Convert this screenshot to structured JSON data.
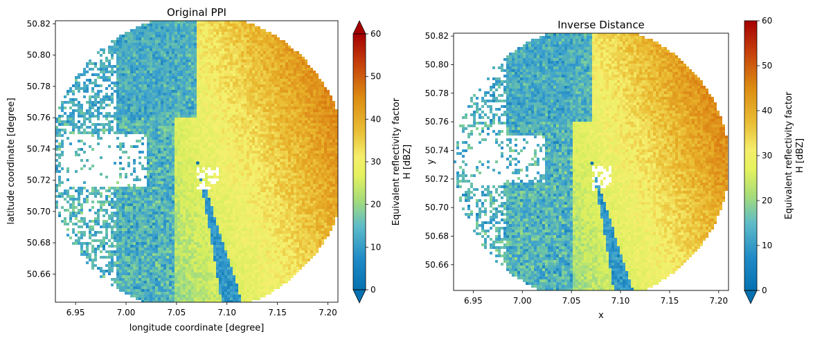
{
  "chart_data": [
    {
      "type": "heatmap",
      "title": "Original PPI",
      "xlabel": "longitude coordinate [degree]",
      "ylabel": "latitude coordinate [degree]",
      "xlim": [
        6.93,
        7.21
      ],
      "ylim": [
        50.642,
        50.822
      ],
      "xticks": [
        6.95,
        7.0,
        7.05,
        7.1,
        7.15,
        7.2
      ],
      "xtick_labels": [
        "6.95",
        "7.00",
        "7.05",
        "7.10",
        "7.15",
        "7.20"
      ],
      "yticks": [
        50.66,
        50.68,
        50.7,
        50.72,
        50.74,
        50.76,
        50.78,
        50.8,
        50.82
      ],
      "ytick_labels": [
        "50.66",
        "50.68",
        "50.70",
        "50.72",
        "50.74",
        "50.76",
        "50.78",
        "50.80",
        "50.82"
      ],
      "radar_center": [
        7.071,
        50.731
      ],
      "colorbar": {
        "label_line1": "Equivalent reflectivity factor",
        "label_line2": "H [dBZ]",
        "range": [
          0,
          60
        ],
        "ticks": [
          0,
          10,
          20,
          30,
          40,
          50,
          60
        ],
        "tick_labels": [
          "0",
          "10",
          "20",
          "30",
          "40",
          "50",
          "60"
        ],
        "extend": "both"
      }
    },
    {
      "type": "heatmap",
      "title": "Inverse Distance",
      "xlabel": "x",
      "ylabel": "y",
      "xlim": [
        6.93,
        7.21
      ],
      "ylim": [
        50.642,
        50.822
      ],
      "xticks": [
        6.95,
        7.0,
        7.05,
        7.1,
        7.15,
        7.2
      ],
      "xtick_labels": [
        "6.95",
        "7.00",
        "7.05",
        "7.10",
        "7.15",
        "7.20"
      ],
      "yticks": [
        50.66,
        50.68,
        50.7,
        50.72,
        50.74,
        50.76,
        50.78,
        50.8,
        50.82
      ],
      "ytick_labels": [
        "50.66",
        "50.68",
        "50.70",
        "50.72",
        "50.74",
        "50.76",
        "50.78",
        "50.80",
        "50.82"
      ],
      "radar_center": [
        7.071,
        50.731
      ],
      "colorbar": {
        "label_line1": "Equivalent reflectivity factor",
        "label_line2": "H [dBZ]",
        "range": [
          0,
          60
        ],
        "ticks": [
          0,
          10,
          20,
          30,
          40,
          50,
          60
        ],
        "tick_labels": [
          "0",
          "10",
          "20",
          "30",
          "40",
          "50",
          "60"
        ],
        "extend": "min"
      }
    }
  ],
  "colormap": [
    "#0571b0",
    "#3a9fd0",
    "#7dcf9a",
    "#d7ee5c",
    "#f5f06e",
    "#e8b32a",
    "#d97a10",
    "#c0330a",
    "#a50000"
  ]
}
